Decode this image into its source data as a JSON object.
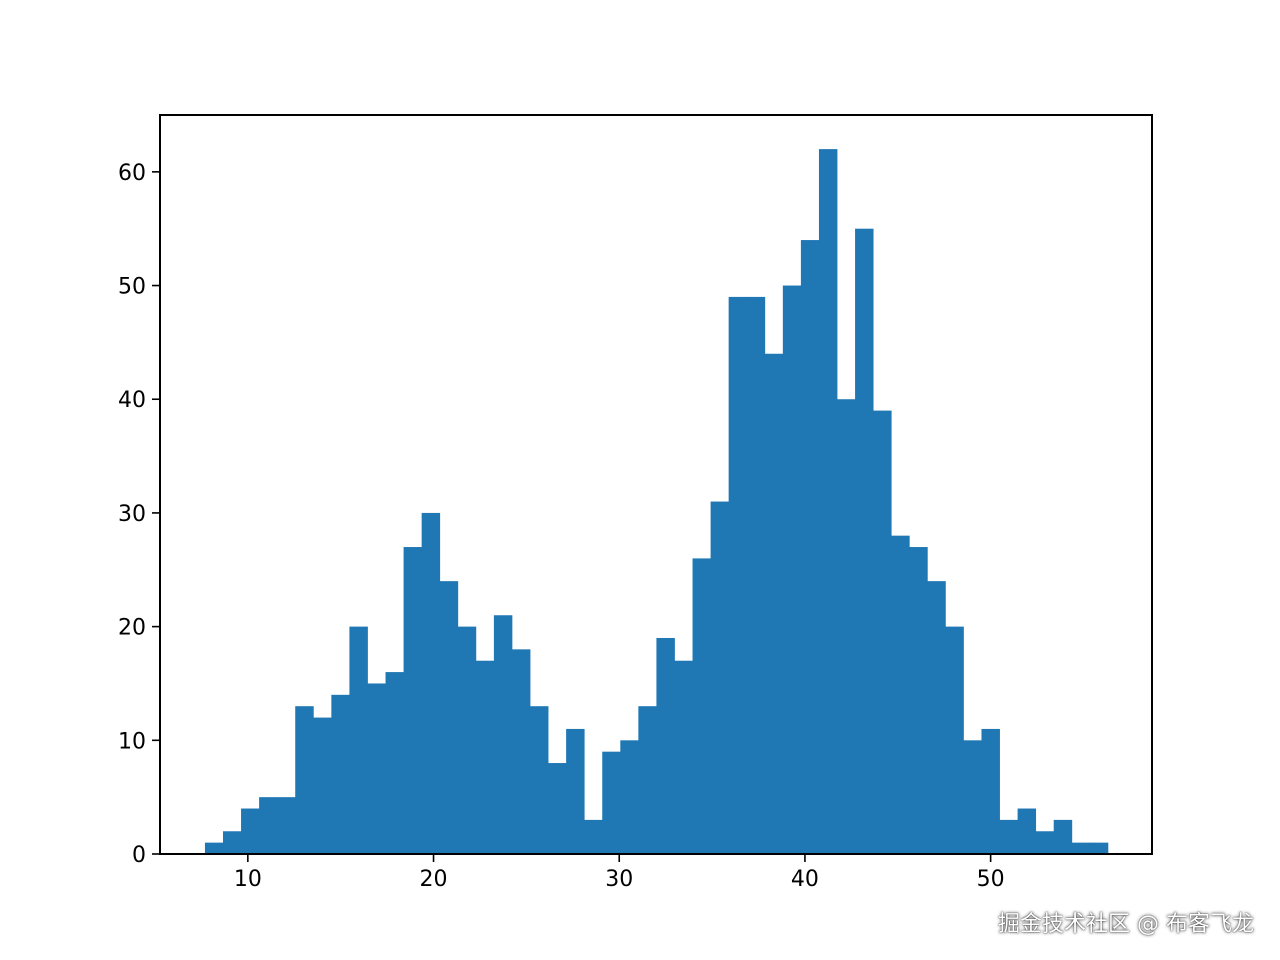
{
  "chart_data": {
    "type": "bar",
    "title": "",
    "xlabel": "",
    "ylabel": "",
    "bin_start": 7.69,
    "bin_width": 0.9725,
    "values": [
      1,
      2,
      4,
      5,
      5,
      13,
      12,
      14,
      20,
      15,
      16,
      27,
      30,
      24,
      20,
      17,
      21,
      18,
      13,
      8,
      11,
      3,
      9,
      10,
      13,
      19,
      17,
      26,
      31,
      49,
      49,
      44,
      50,
      54,
      62,
      40,
      55,
      39,
      28,
      27,
      24,
      20,
      10,
      11,
      3,
      4,
      2,
      3,
      1,
      1
    ],
    "xlim": [
      5.27,
      58.69
    ],
    "ylim": [
      0,
      65
    ],
    "xticks": [
      10,
      20,
      30,
      40,
      50
    ],
    "yticks": [
      0,
      10,
      20,
      30,
      40,
      50,
      60
    ],
    "bar_color": "#1f77b4",
    "grid": false
  },
  "watermark": "掘金技术社区 @ 布客飞龙"
}
